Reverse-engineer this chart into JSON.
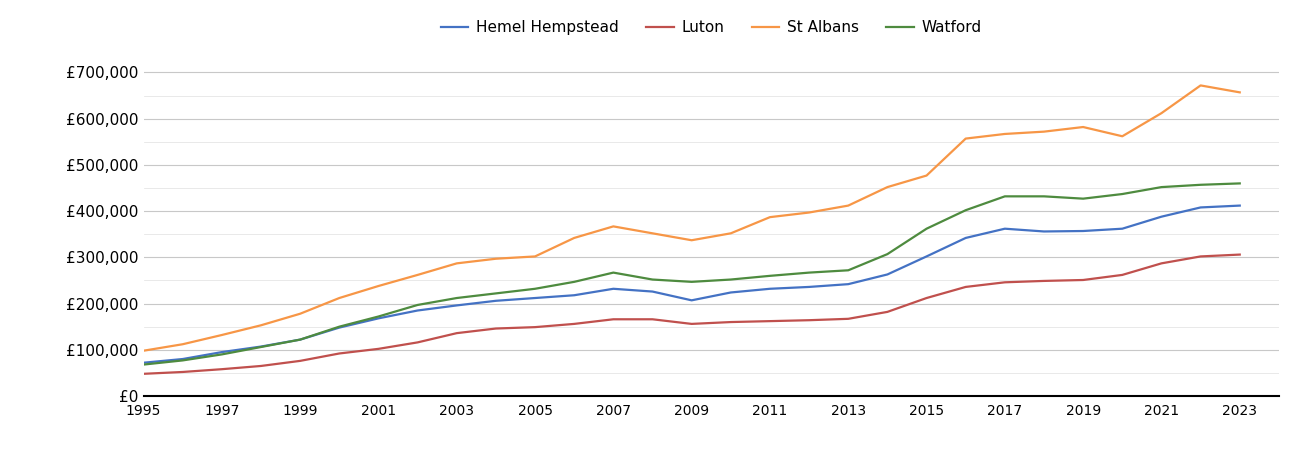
{
  "years": [
    1995,
    1996,
    1997,
    1998,
    1999,
    2000,
    2001,
    2002,
    2003,
    2004,
    2005,
    2006,
    2007,
    2008,
    2009,
    2010,
    2011,
    2012,
    2013,
    2014,
    2015,
    2016,
    2017,
    2018,
    2019,
    2020,
    2021,
    2022,
    2023
  ],
  "hemel_hempstead": [
    72000,
    80000,
    95000,
    107000,
    122000,
    148000,
    168000,
    185000,
    196000,
    206000,
    212000,
    218000,
    232000,
    226000,
    207000,
    224000,
    232000,
    236000,
    242000,
    263000,
    302000,
    342000,
    362000,
    356000,
    357000,
    362000,
    388000,
    408000,
    412000
  ],
  "luton": [
    48000,
    52000,
    58000,
    65000,
    76000,
    92000,
    102000,
    116000,
    136000,
    146000,
    149000,
    156000,
    166000,
    166000,
    156000,
    160000,
    162000,
    164000,
    167000,
    182000,
    212000,
    236000,
    246000,
    249000,
    251000,
    262000,
    287000,
    302000,
    306000
  ],
  "st_albans": [
    98000,
    112000,
    132000,
    153000,
    178000,
    212000,
    238000,
    262000,
    287000,
    297000,
    302000,
    342000,
    367000,
    352000,
    337000,
    352000,
    387000,
    397000,
    412000,
    452000,
    477000,
    557000,
    567000,
    572000,
    582000,
    562000,
    612000,
    672000,
    657000
  ],
  "watford": [
    68000,
    77000,
    90000,
    106000,
    122000,
    150000,
    172000,
    197000,
    212000,
    222000,
    232000,
    247000,
    267000,
    252000,
    247000,
    252000,
    260000,
    267000,
    272000,
    307000,
    362000,
    402000,
    432000,
    432000,
    427000,
    437000,
    452000,
    457000,
    460000
  ],
  "colors": {
    "hemel_hempstead": "#4472C4",
    "luton": "#C0504D",
    "st_albans": "#F79646",
    "watford": "#4E8B3F"
  },
  "legend_labels": [
    "Hemel Hempstead",
    "Luton",
    "St Albans",
    "Watford"
  ],
  "ylim": [
    0,
    740000
  ],
  "yticks": [
    0,
    100000,
    200000,
    300000,
    400000,
    500000,
    600000,
    700000
  ],
  "background_color": "#ffffff",
  "grid_color": "#c8c8c8"
}
